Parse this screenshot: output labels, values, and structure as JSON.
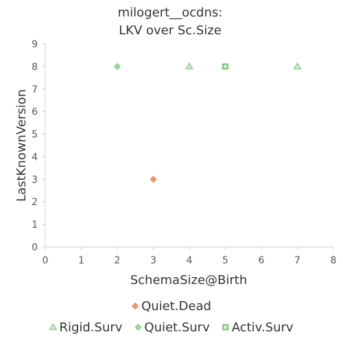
{
  "chart_data": {
    "type": "scatter",
    "title": [
      "milogert__ocdns:",
      "LKV over Sc.Size"
    ],
    "xlabel": "SchemaSize@Birth",
    "ylabel": "LastKnownVersion",
    "xlim": [
      0,
      8
    ],
    "ylim": [
      0,
      9
    ],
    "xticks": [
      "0",
      "1",
      "2",
      "3",
      "4",
      "5",
      "6",
      "7",
      "8"
    ],
    "yticks": [
      "0",
      "1",
      "2",
      "3",
      "4",
      "5",
      "6",
      "7",
      "8",
      "9"
    ],
    "grid": false,
    "legend_position": "bottom",
    "series": [
      {
        "name": "Quiet.Dead",
        "marker": "diamond",
        "color": "#f08a5d",
        "points": [
          {
            "x": 3,
            "y": 3
          }
        ]
      },
      {
        "name": "Rigid.Surv",
        "marker": "triangle",
        "color": "#8ed08e",
        "points": [
          {
            "x": 4,
            "y": 8
          },
          {
            "x": 7,
            "y": 8
          }
        ]
      },
      {
        "name": "Quiet.Surv",
        "marker": "diamond",
        "color": "#8ed08e",
        "points": [
          {
            "x": 2,
            "y": 8
          }
        ]
      },
      {
        "name": "Activ.Surv",
        "marker": "square",
        "color": "#5ab85a",
        "points": [
          {
            "x": 5,
            "y": 8
          }
        ]
      }
    ],
    "legend_rows": [
      [
        "Quiet.Dead"
      ],
      [
        "Rigid.Surv",
        "Quiet.Surv",
        "Activ.Surv"
      ]
    ]
  }
}
